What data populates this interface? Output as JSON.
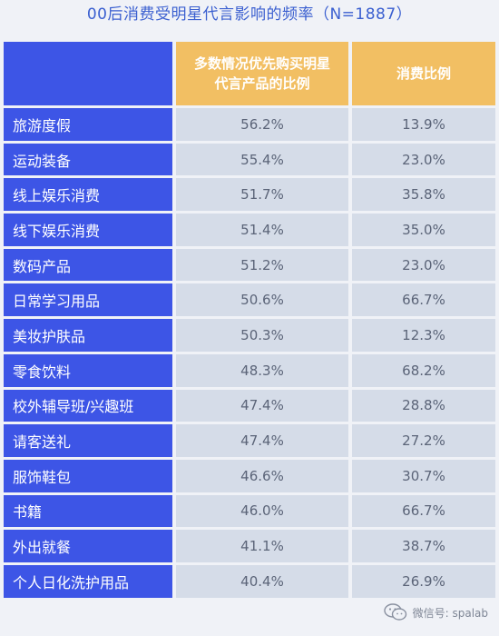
{
  "title": "00后消费受明星代言影响的频率（N=1887）",
  "columns": [
    "多数情况优先购买明星代言产品的比例",
    "消费比例"
  ],
  "rows": [
    {
      "category": "旅游度假",
      "prefer": "56.2%",
      "consume": "13.9%"
    },
    {
      "category": "运动装备",
      "prefer": "55.4%",
      "consume": "23.0%"
    },
    {
      "category": "线上娱乐消费",
      "prefer": "51.7%",
      "consume": "35.8%"
    },
    {
      "category": "线下娱乐消费",
      "prefer": "51.4%",
      "consume": "35.0%"
    },
    {
      "category": "数码产品",
      "prefer": "51.2%",
      "consume": "23.0%"
    },
    {
      "category": "日常学习用品",
      "prefer": "50.6%",
      "consume": "66.7%"
    },
    {
      "category": "美妆护肤品",
      "prefer": "50.3%",
      "consume": "12.3%"
    },
    {
      "category": "零食饮料",
      "prefer": "48.3%",
      "consume": "68.2%"
    },
    {
      "category": "校外辅导班/兴趣班",
      "prefer": "47.4%",
      "consume": "28.8%"
    },
    {
      "category": "请客送礼",
      "prefer": "47.4%",
      "consume": "27.2%"
    },
    {
      "category": "服饰鞋包",
      "prefer": "46.6%",
      "consume": "30.7%"
    },
    {
      "category": "书籍",
      "prefer": "46.0%",
      "consume": "66.7%"
    },
    {
      "category": "外出就餐",
      "prefer": "41.1%",
      "consume": "38.7%"
    },
    {
      "category": "个人日化洗护用品",
      "prefer": "40.4%",
      "consume": "26.9%"
    }
  ],
  "watermark": "微信号: spalab",
  "icons": {
    "watermark_icon": "wechat-icon"
  },
  "colors": {
    "title": "#3a5fd0",
    "category_bg": "#3d55e6",
    "header_bg": "#f2bf63",
    "value_bg": "#d5dce8"
  }
}
